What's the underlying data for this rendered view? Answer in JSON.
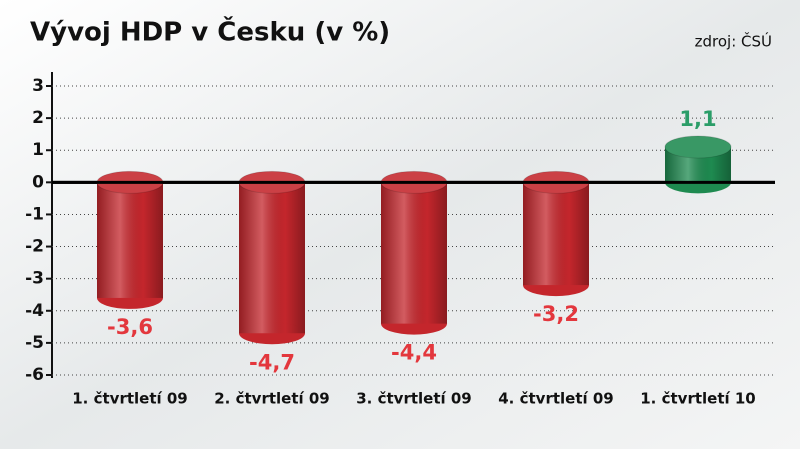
{
  "chart_data": {
    "type": "bar",
    "title": "Vývoj HDP v Česku (v %)",
    "source": "zdroj: ČSÚ",
    "categories": [
      "1. čtvrtletí 09",
      "2. čtvrtletí 09",
      "3. čtvrtletí 09",
      "4. čtvrtletí 09",
      "1. čtvrtletí 10"
    ],
    "values": [
      -3.6,
      -4.7,
      -4.4,
      -3.2,
      1.1
    ],
    "value_labels": [
      "-3,6",
      "-4,7",
      "-4,4",
      "-3,2",
      "1,1"
    ],
    "colors": [
      "#c4262c",
      "#c4262c",
      "#c4262c",
      "#c4262c",
      "#1e8a50"
    ],
    "label_colors": [
      "#e3373d",
      "#e3373d",
      "#e3373d",
      "#e3373d",
      "#2a9d68"
    ],
    "ylim": [
      -6,
      3
    ],
    "yticks": [
      -6,
      -5,
      -4,
      -3,
      -2,
      -1,
      0,
      1,
      2,
      3
    ],
    "grid": true
  }
}
